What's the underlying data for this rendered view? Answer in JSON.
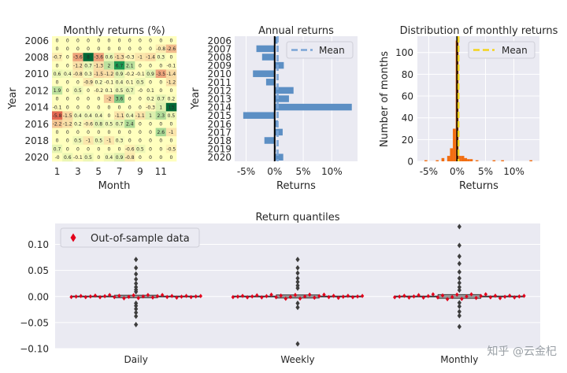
{
  "watermark": "知乎 @云金杞",
  "chart_data": [
    {
      "type": "heatmap",
      "title": "Monthly returns (%)",
      "xlabel": "Month",
      "ylabel": "Year",
      "x_ticks": [
        "1",
        "3",
        "5",
        "7",
        "9",
        "11"
      ],
      "y_ticks": [
        "2006",
        "2008",
        "2010",
        "2012",
        "2014",
        "2016",
        "2018",
        "2020"
      ],
      "months": [
        1,
        2,
        3,
        4,
        5,
        6,
        7,
        8,
        9,
        10,
        11,
        12
      ],
      "years": [
        "2006",
        "2007",
        "2008",
        "2009",
        "2010",
        "2011",
        "2012",
        "2013",
        "2014",
        "2015",
        "2016",
        "2017",
        "2018",
        "2019",
        "2020"
      ],
      "cells": [
        [
          "0",
          "0",
          "0",
          "0",
          "0",
          "0",
          "0",
          "0",
          "0",
          "0",
          "0",
          "0"
        ],
        [
          "0",
          "0",
          "0",
          "0",
          "0",
          "0",
          "0",
          "0",
          "0",
          "0",
          "-0.8",
          "-2.6"
        ],
        [
          "-0.7",
          "0",
          "-3.6",
          "8",
          "-3.6",
          "0.6",
          "-1.3",
          "-0.3",
          "-1",
          "-1.4",
          "0.3",
          "0"
        ],
        [
          "0",
          "0",
          "-1.2",
          "0.7",
          "-1.3",
          "2",
          "6.7",
          "2.1",
          "0",
          "0",
          "0",
          "-0.1"
        ],
        [
          "0.6",
          "0.4",
          "-0.8",
          "0.3",
          "-1.5",
          "-1.2",
          "0.9",
          "-0.2",
          "-0.1",
          "0.9",
          "-3.5",
          "-1.4"
        ],
        [
          "0",
          "0",
          "0",
          "-0.9",
          "0.2",
          "-0.1",
          "0.4",
          "0.1",
          "0.5",
          "0",
          "0",
          "-1.2"
        ],
        [
          "1.9",
          "0",
          "0.5",
          "0",
          "-0.2",
          "0.1",
          "0.5",
          "0.7",
          "-0",
          "0.1",
          "0",
          "0"
        ],
        [
          "0",
          "0",
          "0",
          "0",
          "0",
          "-2",
          "3.6",
          "0",
          "0",
          "0.2",
          "0.7",
          "0.2"
        ],
        [
          "-0.1",
          "0",
          "0",
          "0",
          "0",
          "0",
          "0",
          "0",
          "0",
          "-0.3",
          "1",
          "13"
        ],
        [
          "-5.8",
          "-1.5",
          "0.4",
          "0.4",
          "0.4",
          "0",
          "-1.1",
          "0.4",
          "-1.1",
          "1",
          "2.3",
          "0.5"
        ],
        [
          "-2.2",
          "-1.2",
          "0.2",
          "-0.6",
          "0.8",
          "0.5",
          "0.7",
          "2.4",
          "0",
          "0",
          "0",
          "0"
        ],
        [
          "0",
          "0",
          "0",
          "0",
          "0",
          "0",
          "0",
          "0",
          "0",
          "0",
          "2.6",
          "-1"
        ],
        [
          "0",
          "0",
          "0.5",
          "-1",
          "0.5",
          "-1",
          "0.3",
          "0",
          "0",
          "0",
          "0",
          "0"
        ],
        [
          "0.7",
          "0",
          "0",
          "0",
          "0",
          "0",
          "0",
          "-0.6",
          "0.5",
          "0",
          "0",
          "-0.5"
        ],
        [
          "-0",
          "0.6",
          "-0.1",
          "0.5",
          "0",
          "0.4",
          "0.9",
          "-0.8",
          "0",
          "0",
          "0",
          "0"
        ]
      ],
      "vmin": -8,
      "vmax": 8
    },
    {
      "type": "bar",
      "orientation": "horizontal",
      "title": "Annual returns",
      "xlabel": "Returns",
      "ylabel": "Year",
      "categories": [
        "2006",
        "2007",
        "2008",
        "2009",
        "2010",
        "2011",
        "2012",
        "2013",
        "2014",
        "2015",
        "2016",
        "2017",
        "2018",
        "2019",
        "2020"
      ],
      "values": [
        0.5,
        -3.2,
        -2.2,
        1.6,
        -3.8,
        -1.5,
        3.3,
        2.5,
        13.5,
        -5.5,
        0.6,
        1.4,
        -1.8,
        0.2,
        1.5
      ],
      "mean": 0.5,
      "xlim": [
        -7,
        14.5
      ],
      "x_ticks": [
        "-5%",
        "0%",
        "5%",
        "10%"
      ],
      "legend": [
        "Mean"
      ],
      "legend_position": "top-right",
      "grid": true,
      "colors": {
        "bar": "#5c8fc4",
        "mean": "#7ba5d6",
        "zero": "#000000"
      }
    },
    {
      "type": "bar",
      "title": "Distribution of monthly returns",
      "xlabel": "Returns",
      "ylabel": "Number of months",
      "bin_centers": [
        -5.5,
        -3.5,
        -2.5,
        -1.5,
        -1.0,
        -0.5,
        0,
        0.5,
        1.0,
        1.5,
        2.0,
        2.5,
        3.5,
        6.5,
        8.0,
        13.0
      ],
      "values": [
        1,
        1,
        3,
        5,
        12,
        30,
        111,
        5,
        5,
        3,
        2,
        2,
        1,
        1,
        1,
        1
      ],
      "mean": 0.1,
      "xlim": [
        -7,
        14.5
      ],
      "ylim": [
        0,
        115
      ],
      "x_ticks": [
        "-5%",
        "0%",
        "5%",
        "10%"
      ],
      "y_ticks": [
        "0",
        "20",
        "40",
        "60",
        "80",
        "100"
      ],
      "legend": [
        "Mean"
      ],
      "legend_position": "top-right",
      "grid": true,
      "colors": {
        "bar": "#f26d10",
        "mean": "#f3d31d",
        "zero": "#000000"
      }
    },
    {
      "type": "scatter",
      "title": "Return quantiles",
      "categories": [
        "Daily",
        "Weekly",
        "Monthly"
      ],
      "ylim": [
        -0.1,
        0.14
      ],
      "y_ticks": [
        "−0.10",
        "−0.05",
        "0.00",
        "0.05",
        "0.10"
      ],
      "legend": [
        "Out-of-sample data"
      ],
      "legend_position": "top-left",
      "grid": true,
      "outliers": {
        "Daily": [
          0.071,
          0.055,
          0.043,
          0.033,
          0.025,
          0.018,
          0.013,
          0.009,
          -0.013,
          -0.018,
          -0.024,
          -0.031,
          -0.038,
          -0.054
        ],
        "Weekly": [
          0.071,
          0.055,
          0.045,
          0.035,
          0.028,
          0.021,
          0.016,
          -0.013,
          -0.021,
          -0.091
        ],
        "Monthly": [
          0.134,
          0.098,
          0.077,
          0.063,
          0.047,
          0.035,
          0.026,
          0.018,
          0.012,
          -0.012,
          -0.019,
          -0.029,
          -0.037,
          -0.058
        ]
      },
      "oos_spread": {
        "Daily": 0.004,
        "Weekly": 0.005,
        "Monthly": 0.006
      },
      "colors": {
        "oos": "#e3001b",
        "box_line": "#3a3a3a",
        "box_fill": "#9a9a9a",
        "bg": "#eaeaf2",
        "grid": "#ffffff"
      }
    }
  ]
}
